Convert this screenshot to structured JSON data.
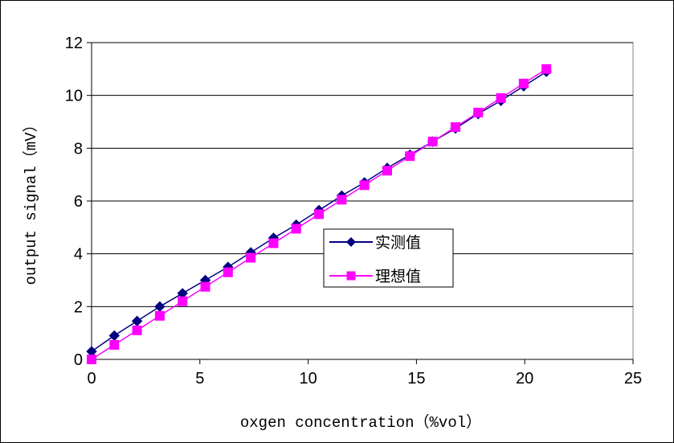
{
  "chart_data": {
    "type": "line",
    "xlabel": "oxgen concentration（%vol）",
    "ylabel": "output signal（mV）",
    "xlim": [
      0,
      25
    ],
    "ylim": [
      0,
      12
    ],
    "x_ticks": [
      "0",
      "5",
      "10",
      "15",
      "20",
      "25"
    ],
    "y_ticks": [
      "0",
      "2",
      "4",
      "6",
      "8",
      "10",
      "12"
    ],
    "grid": "horizontal",
    "legend_position": "center-right",
    "series": [
      {
        "name": "实测值",
        "color": "#000080",
        "marker": "diamond",
        "x": [
          0,
          1.05,
          2.1,
          3.15,
          4.2,
          5.25,
          6.3,
          7.35,
          8.4,
          9.45,
          10.5,
          11.55,
          12.6,
          13.65,
          14.7,
          15.75,
          16.8,
          17.85,
          18.9,
          19.95,
          21
        ],
        "y": [
          0.3,
          0.9,
          1.45,
          2.0,
          2.5,
          3.0,
          3.5,
          4.05,
          4.6,
          5.1,
          5.65,
          6.2,
          6.7,
          7.25,
          7.75,
          8.25,
          8.75,
          9.3,
          9.8,
          10.35,
          10.9
        ]
      },
      {
        "name": "理想值",
        "color": "#ff00ff",
        "marker": "square",
        "x": [
          0,
          1.05,
          2.1,
          3.15,
          4.2,
          5.25,
          6.3,
          7.35,
          8.4,
          9.45,
          10.5,
          11.55,
          12.6,
          13.65,
          14.7,
          15.75,
          16.8,
          17.85,
          18.9,
          19.95,
          21
        ],
        "y": [
          0,
          0.55,
          1.1,
          1.65,
          2.2,
          2.75,
          3.3,
          3.85,
          4.4,
          4.95,
          5.5,
          6.05,
          6.6,
          7.15,
          7.7,
          8.25,
          8.8,
          9.35,
          9.9,
          10.45,
          11.0
        ]
      }
    ]
  }
}
